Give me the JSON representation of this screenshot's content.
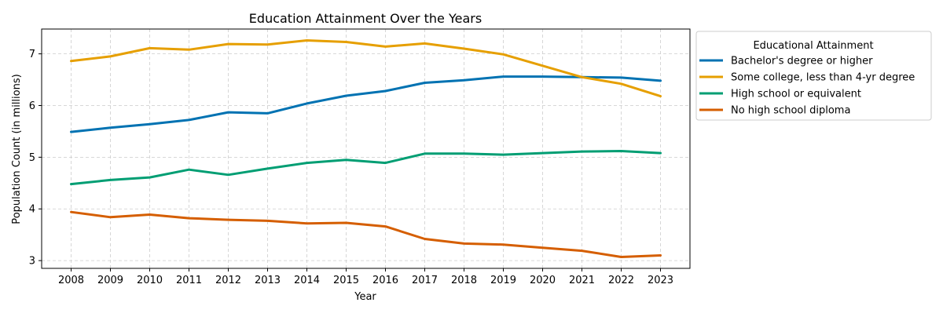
{
  "chart_data": {
    "type": "line",
    "title": "Education Attainment Over the Years",
    "xlabel": "Year",
    "ylabel": "Population Count (in millions)",
    "x": [
      "2008",
      "2009",
      "2010",
      "2011",
      "2012",
      "2013",
      "2014",
      "2015",
      "2016",
      "2017",
      "2018",
      "2019",
      "2020",
      "2021",
      "2022",
      "2023"
    ],
    "ylim": [
      2.85,
      7.48
    ],
    "yticks": [
      3,
      4,
      5,
      6,
      7
    ],
    "grid": true,
    "legend": {
      "title": "Educational Attainment",
      "placement": "outside-top-right"
    },
    "series": [
      {
        "name": "Bachelor's degree or higher",
        "color": "#0072b2",
        "values": [
          5.49,
          5.57,
          5.64,
          5.72,
          5.87,
          5.85,
          6.04,
          6.19,
          6.28,
          6.44,
          6.49,
          6.56,
          6.56,
          6.55,
          6.54,
          6.48
        ]
      },
      {
        "name": "Some college, less than 4-yr degree",
        "color": "#e69f00",
        "values": [
          6.86,
          6.95,
          7.11,
          7.08,
          7.19,
          7.18,
          7.26,
          7.23,
          7.14,
          7.2,
          7.1,
          6.99,
          6.77,
          6.55,
          6.42,
          6.18
        ]
      },
      {
        "name": "High school or equivalent",
        "color": "#009e73",
        "values": [
          4.48,
          4.56,
          4.61,
          4.76,
          4.66,
          4.78,
          4.89,
          4.95,
          4.89,
          5.07,
          5.07,
          5.05,
          5.08,
          5.11,
          5.12,
          5.08
        ]
      },
      {
        "name": "No high school diploma",
        "color": "#d55e00",
        "values": [
          3.94,
          3.84,
          3.89,
          3.82,
          3.79,
          3.77,
          3.72,
          3.73,
          3.66,
          3.42,
          3.33,
          3.31,
          3.25,
          3.19,
          3.07,
          3.1
        ]
      }
    ]
  }
}
